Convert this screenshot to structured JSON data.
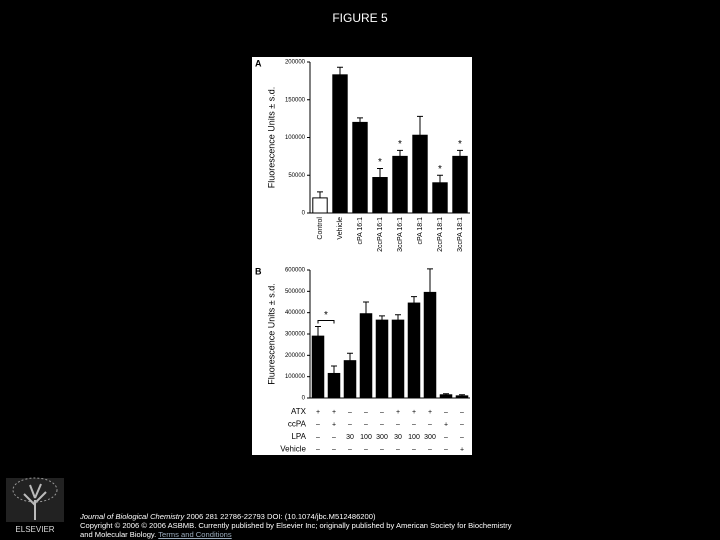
{
  "title": "FIGURE 5",
  "chart_data": [
    {
      "type": "bar",
      "panel": "A",
      "ylabel": "Fluorescence Units ± s.d.",
      "categories": [
        "Control",
        "Vehicle",
        "cPA 16:1",
        "2ccPA 16:1",
        "3ccPA 16:1",
        "cPA 18:1",
        "2ccPA 18:1",
        "3ccPA 18:1"
      ],
      "values": [
        20000,
        183000,
        120000,
        47000,
        75000,
        103000,
        40000,
        75000
      ],
      "errors": [
        8000,
        10000,
        6000,
        12000,
        8000,
        25000,
        10000,
        8000
      ],
      "colors": [
        "#ffffff",
        "#000000",
        "#000000",
        "#000000",
        "#000000",
        "#000000",
        "#000000",
        "#000000"
      ],
      "significance": [
        null,
        null,
        null,
        "*",
        "*",
        null,
        "*",
        "*"
      ],
      "ylim": [
        0,
        200000
      ],
      "yticks": [
        0,
        50000,
        100000,
        150000,
        200000
      ]
    },
    {
      "type": "bar",
      "panel": "B",
      "ylabel": "Fluorescence Units ± s.d.",
      "values": [
        290000,
        115000,
        175000,
        395000,
        365000,
        365000,
        445000,
        495000,
        15000,
        10000
      ],
      "errors": [
        45000,
        35000,
        35000,
        55000,
        20000,
        25000,
        30000,
        110000,
        5000,
        5000
      ],
      "color": "#000000",
      "bracket_label": "*",
      "ylim": [
        0,
        600000
      ],
      "yticks": [
        0,
        100000,
        200000,
        300000,
        400000,
        500000,
        600000
      ],
      "table": {
        "rows": [
          {
            "label": "ATX",
            "cells": [
              "+",
              "+",
              "–",
              "–",
              "–",
              "+",
              "+",
              "+",
              "–",
              "–"
            ]
          },
          {
            "label": "ccPA",
            "cells": [
              "–",
              "+",
              "–",
              "–",
              "–",
              "–",
              "–",
              "–",
              "+",
              "–"
            ]
          },
          {
            "label": "LPA",
            "cells": [
              "–",
              "–",
              "30",
              "100",
              "300",
              "30",
              "100",
              "300",
              "–",
              "–"
            ]
          },
          {
            "label": "Vehicle",
            "cells": [
              "–",
              "–",
              "–",
              "–",
              "–",
              "–",
              "–",
              "–",
              "–",
              "+"
            ]
          }
        ]
      }
    }
  ],
  "citation": {
    "journal": "Journal of Biological Chemistry",
    "reference": " 2006 281 22786-22793 DOI: (10.1074/jbc.M512486200)",
    "copyright": "Copyright © 2006 © 2006 ASBMB. Currently published by Elsevier Inc; originally published by American Society for Biochemistry and Molecular Biology.",
    "link": "Terms and Conditions"
  },
  "logo_text": "ELSEVIER"
}
